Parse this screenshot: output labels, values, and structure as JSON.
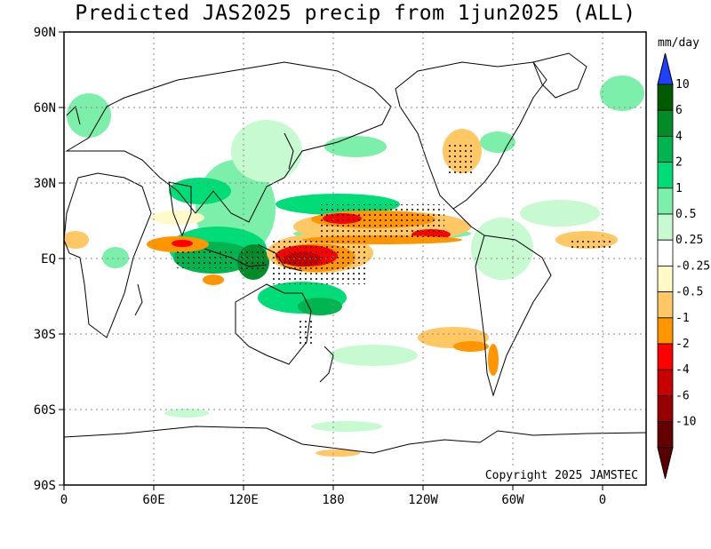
{
  "title": "Predicted JAS2025 precip from 1jun2025 (ALL)",
  "copyright": "Copyright 2025 JAMSTEC",
  "units": "mm/day",
  "lat_labels": [
    "90N",
    "60N",
    "30N",
    "EQ",
    "30S",
    "60S",
    "90S"
  ],
  "lon_labels": [
    "0",
    "60E",
    "120E",
    "180",
    "120W",
    "60W",
    "0"
  ],
  "colorbar": {
    "labels": [
      "10",
      "6",
      "4",
      "2",
      "1",
      "0.5",
      "0.25",
      "-0.25",
      "-0.5",
      "-1",
      "-2",
      "-4",
      "-6",
      "-10"
    ],
    "colors": [
      "#0000ff",
      "#005a00",
      "#008c28",
      "#00b450",
      "#00dc78",
      "#7cf0aa",
      "#c8fad2",
      "#ffffff",
      "#fffac8",
      "#ffc864",
      "#ff9600",
      "#ff0000",
      "#c80000",
      "#960000",
      "#640000"
    ],
    "top_arrow_color": "#2040ff",
    "bottom_arrow_color": "#5a0000"
  },
  "anomaly_regions": [
    {
      "name": "western-pacific-wet",
      "lon": 125,
      "lat": 3,
      "level": "2"
    },
    {
      "name": "maritime-continent-wet",
      "lon": 105,
      "lat": -2,
      "level": "4"
    },
    {
      "name": "north-pacific-wet",
      "lon": 165,
      "lat": 18,
      "level": "1"
    },
    {
      "name": "central-pacific-dry",
      "lon": 165,
      "lat": 5,
      "level": "-4"
    },
    {
      "name": "central-pacific-dry-strong",
      "lon": 160,
      "lat": 0,
      "level": "-6"
    },
    {
      "name": "subtropical-pacific-dry",
      "lon": 185,
      "lat": 14,
      "level": "-4"
    },
    {
      "name": "eastern-pacific-dry",
      "lon": 210,
      "lat": 10,
      "level": "-2"
    },
    {
      "name": "indian-ocean-dry",
      "lon": 78,
      "lat": 5,
      "level": "-2"
    },
    {
      "name": "south-pacific-dry",
      "lon": 250,
      "lat": -30,
      "level": "-1"
    },
    {
      "name": "atlantic-dry",
      "lon": 340,
      "lat": 7,
      "level": "-1"
    }
  ]
}
